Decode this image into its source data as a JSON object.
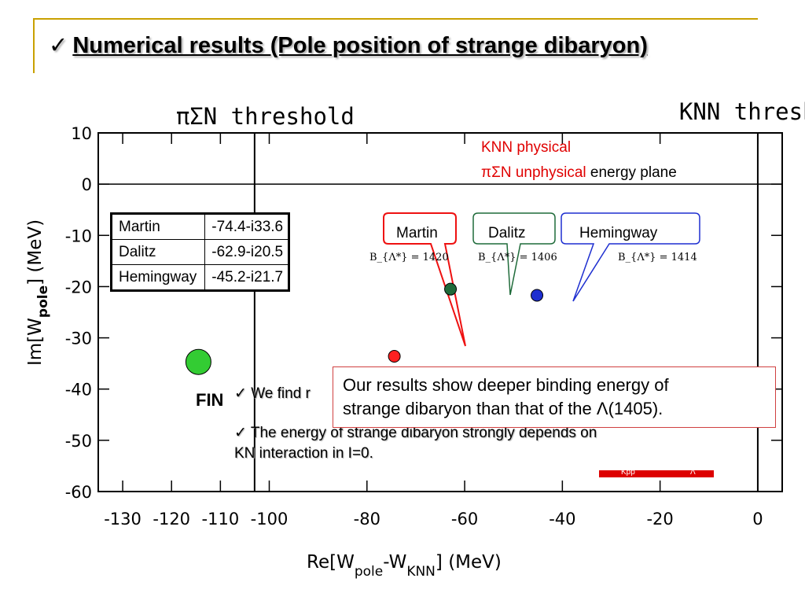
{
  "title": {
    "check": "✓",
    "text": "Numerical results (Pole position of strange dibaryon)"
  },
  "chart_data": {
    "type": "scatter",
    "xlabel": {
      "base": "Re[W",
      "sub1": "pole",
      "mid": "-W",
      "sub2": "KNN",
      "end": "] (MeV)"
    },
    "ylabel": {
      "base": "Im[W",
      "sub": "pole",
      "end": "] (MeV)"
    },
    "xlim": [
      -135,
      5
    ],
    "ylim": [
      -60,
      10
    ],
    "x_ticks": [
      -130,
      -120,
      -110,
      -100,
      -80,
      -60,
      -40,
      -20,
      0
    ],
    "y_ticks": [
      10,
      0,
      -10,
      -20,
      -30,
      -40,
      -50,
      -60
    ],
    "thresholds": [
      {
        "name": "πΣN threshold",
        "x": -103
      },
      {
        "name": "KNN threshold",
        "x": 0
      }
    ],
    "points": [
      {
        "name": "Martin",
        "x": -74.4,
        "y": -33.6,
        "color": "#ff2020"
      },
      {
        "name": "Dalitz",
        "x": -62.9,
        "y": -20.5,
        "color": "#1f6b3a"
      },
      {
        "name": "Hemingway",
        "x": -45.2,
        "y": -21.7,
        "color": "#1e2fd0"
      },
      {
        "name": "",
        "x": -114.5,
        "y": -34.7,
        "color": "#33cc33"
      }
    ],
    "callouts": [
      {
        "label": "Martin",
        "B": "B_{Λ*} = 1420",
        "color": "#ee1111"
      },
      {
        "label": "Dalitz",
        "B": "B_{Λ*} = 1406",
        "color": "#1f6b3a"
      },
      {
        "label": "Hemingway",
        "B": "B_{Λ*} = 1414",
        "color": "#1e2fd0"
      }
    ]
  },
  "annotations": {
    "plane_line1": "KNN physical",
    "plane_line2_red": "πΣN unphysical",
    "plane_line2_black": " energy plane",
    "fin": "FIN",
    "bullet1": "✓ We find r",
    "bullet2": "✓ The energy of strange dibaryon strongly depends on",
    "bullet3": "KN interaction in I=0.",
    "result_line1": "Our results show deeper binding energy of",
    "result_line2": "strange dibaryon than that of the Λ(1405).",
    "redbar_left": "Kpp",
    "redbar_right": "Λ"
  },
  "table": {
    "rows": [
      {
        "name": "Martin",
        "value": "-74.4-i33.6"
      },
      {
        "name": "Dalitz",
        "value": "-62.9-i20.5"
      },
      {
        "name": "Hemingway",
        "value": "-45.2-i21.7"
      }
    ]
  }
}
